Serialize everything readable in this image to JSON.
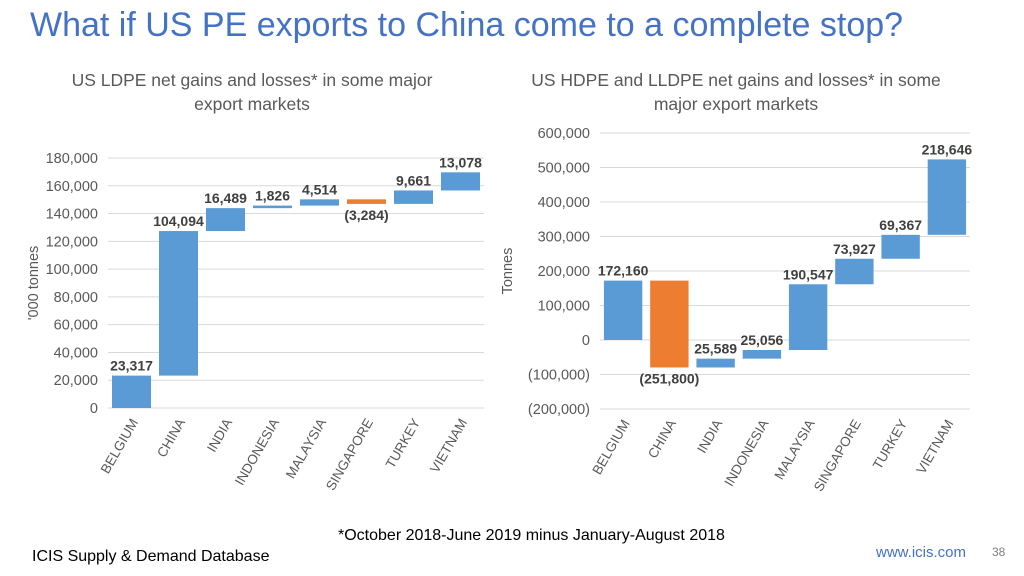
{
  "slide": {
    "title": "What if US PE exports to China come to a complete stop?",
    "footnote": "*October 2018-June 2019 minus January-August 2018",
    "source": "ICIS Supply & Demand Database",
    "website": "www.icis.com",
    "page_number": "38"
  },
  "colors": {
    "increase": "#5B9BD5",
    "decrease": "#ED7D31",
    "grid": "#D9D9D9",
    "axis_text": "#595959",
    "title": "#4472C4"
  },
  "chart_data": [
    {
      "type": "bar",
      "subtype": "waterfall",
      "title_lines": [
        "US LDPE net gains and losses* in some major",
        "export markets"
      ],
      "xlabel": "",
      "ylabel": "'000 tonnes",
      "ylim": [
        0,
        180000
      ],
      "yticks": [
        0,
        20000,
        40000,
        60000,
        80000,
        100000,
        120000,
        140000,
        160000,
        180000
      ],
      "ytick_labels": [
        "0",
        "20,000",
        "40,000",
        "60,000",
        "80,000",
        "100,000",
        "120,000",
        "140,000",
        "160,000",
        "180,000"
      ],
      "grid": true,
      "categories": [
        "BELGIUM",
        "CHINA",
        "INDIA",
        "INDONESIA",
        "MALAYSIA",
        "SINGAPORE",
        "TURKEY",
        "VIETNAM"
      ],
      "values": [
        23317,
        104094,
        16489,
        1826,
        4514,
        -3284,
        9661,
        13078
      ],
      "data_labels": [
        "23,317",
        "104,094",
        "16,489",
        "1,826",
        "4,514",
        "(3,284)",
        "9,661",
        "13,078"
      ]
    },
    {
      "type": "bar",
      "subtype": "waterfall",
      "title_lines": [
        "US HDPE and LLDPE net gains and losses* in some",
        "major export markets"
      ],
      "xlabel": "",
      "ylabel": "Tonnes",
      "ylim": [
        -200000,
        600000
      ],
      "yticks": [
        -200000,
        -100000,
        0,
        100000,
        200000,
        300000,
        400000,
        500000,
        600000
      ],
      "ytick_labels": [
        "(200,000)",
        "(100,000)",
        "0",
        "100,000",
        "200,000",
        "300,000",
        "400,000",
        "500,000",
        "600,000"
      ],
      "grid": true,
      "categories": [
        "BELGIUM",
        "CHINA",
        "INDIA",
        "INDONESIA",
        "MALAYSIA",
        "SINGAPORE",
        "TURKEY",
        "VIETNAM"
      ],
      "values": [
        172160,
        -251800,
        25589,
        25056,
        190547,
        73927,
        69367,
        218646
      ],
      "data_labels": [
        "172,160",
        "(251,800)",
        "25,589",
        "25,056",
        "190,547",
        "73,927",
        "69,367",
        "218,646"
      ]
    }
  ]
}
